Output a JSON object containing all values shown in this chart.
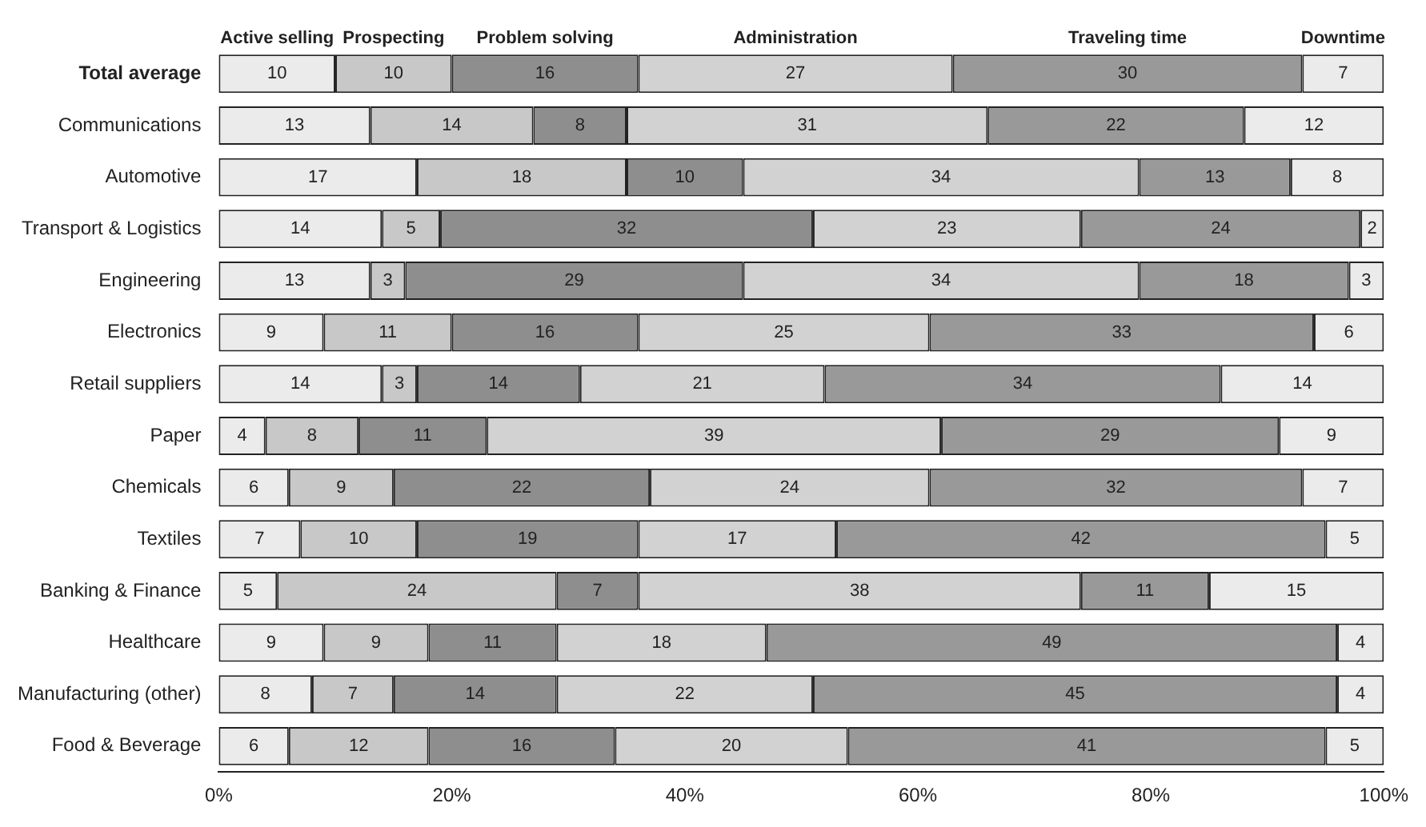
{
  "chart_data": {
    "type": "bar",
    "orientation": "horizontal",
    "stacked": true,
    "categories": [
      "Total average",
      "Communications",
      "Automotive",
      "Transport & Logistics",
      "Engineering",
      "Electronics",
      "Retail suppliers",
      "Paper",
      "Chemicals",
      "Textiles",
      "Banking & Finance",
      "Healthcare",
      "Manufacturing (other)",
      "Food & Beverage"
    ],
    "series": [
      {
        "name": "Active selling",
        "color": "#ebebeb",
        "values": [
          10,
          13,
          17,
          14,
          13,
          9,
          14,
          4,
          6,
          7,
          5,
          9,
          8,
          6
        ]
      },
      {
        "name": "Prospecting",
        "color": "#c8c8c8",
        "values": [
          10,
          14,
          18,
          5,
          3,
          11,
          3,
          8,
          9,
          10,
          24,
          9,
          7,
          12
        ]
      },
      {
        "name": "Problem solving",
        "color": "#8e8e8e",
        "values": [
          16,
          8,
          10,
          32,
          29,
          16,
          14,
          11,
          22,
          19,
          7,
          11,
          14,
          16
        ]
      },
      {
        "name": "Administration",
        "color": "#d2d2d2",
        "values": [
          27,
          31,
          34,
          23,
          34,
          25,
          21,
          39,
          24,
          17,
          38,
          18,
          22,
          20
        ]
      },
      {
        "name": "Traveling time",
        "color": "#999999",
        "values": [
          30,
          22,
          13,
          24,
          18,
          33,
          34,
          29,
          32,
          42,
          11,
          49,
          45,
          41
        ]
      },
      {
        "name": "Downtime",
        "color": "#ebebeb",
        "values": [
          7,
          12,
          8,
          2,
          3,
          6,
          14,
          9,
          7,
          5,
          15,
          4,
          4,
          5
        ]
      }
    ],
    "xlim": [
      0,
      100
    ],
    "xticks": [
      {
        "value": 0,
        "label": "0%"
      },
      {
        "value": 20,
        "label": "20%"
      },
      {
        "value": 40,
        "label": "40%"
      },
      {
        "value": 60,
        "label": "60%"
      },
      {
        "value": 80,
        "label": "80%"
      },
      {
        "value": 100,
        "label": "100%"
      }
    ],
    "grid": false,
    "legend": "top",
    "data_labels": true
  }
}
